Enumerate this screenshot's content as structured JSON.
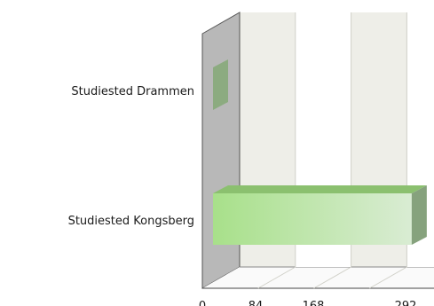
{
  "chart_data": {
    "type": "bar",
    "orientation": "horizontal",
    "style": "3d",
    "categories": [
      "Studiested Drammen",
      "Studiested Kongsberg"
    ],
    "values": [
      1,
      275
    ],
    "xlim": [
      0,
      336
    ],
    "xticks": [
      "0",
      "84",
      "168",
      "292"
    ],
    "grid": true,
    "bar_color": "#a8e08a",
    "bar_color_light": "#d9ecd3",
    "side_wall_color": "#b8b8b8",
    "back_wall_color": "#eeeee8"
  }
}
